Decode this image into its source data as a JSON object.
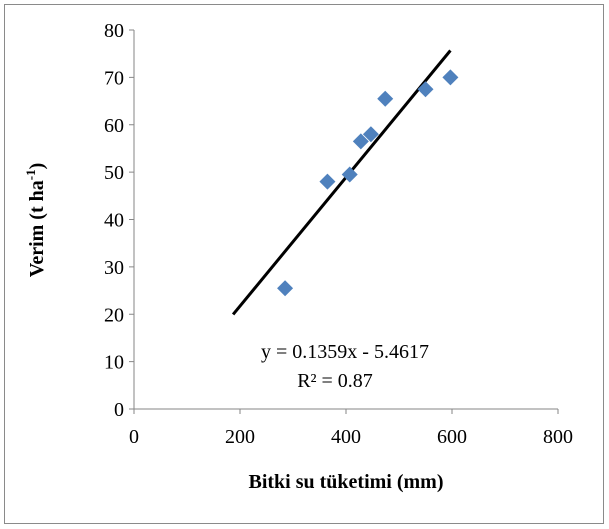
{
  "chart_data": {
    "type": "scatter",
    "xlabel": "Bitki su tüketimi (mm)",
    "ylabel": "Verim (t ha",
    "ylabel_sup": "-1",
    "ylabel_end": ")",
    "xlim": [
      0,
      800
    ],
    "ylim": [
      0,
      80
    ],
    "x_ticks": [
      "0",
      "200",
      "400",
      "600",
      "800"
    ],
    "y_ticks": [
      "0",
      "10",
      "20",
      "30",
      "40",
      "50",
      "60",
      "70",
      "80"
    ],
    "grid": false,
    "series": [
      {
        "points": [
          {
            "x": 285,
            "y": 25.5
          },
          {
            "x": 365,
            "y": 48
          },
          {
            "x": 407,
            "y": 49.5
          },
          {
            "x": 428,
            "y": 56.5
          },
          {
            "x": 447,
            "y": 58
          },
          {
            "x": 474,
            "y": 65.5
          },
          {
            "x": 550,
            "y": 67.5
          },
          {
            "x": 597,
            "y": 70
          }
        ],
        "color": "#4f81bd"
      }
    ],
    "trendline": {
      "slope": 0.1359,
      "intercept": -5.4617,
      "x_start": 187,
      "x_end": 597,
      "color": "#000000"
    },
    "annotations": {
      "equation": "y = 0.1359x - 5.4617",
      "r2": "R² = 0.87"
    }
  }
}
